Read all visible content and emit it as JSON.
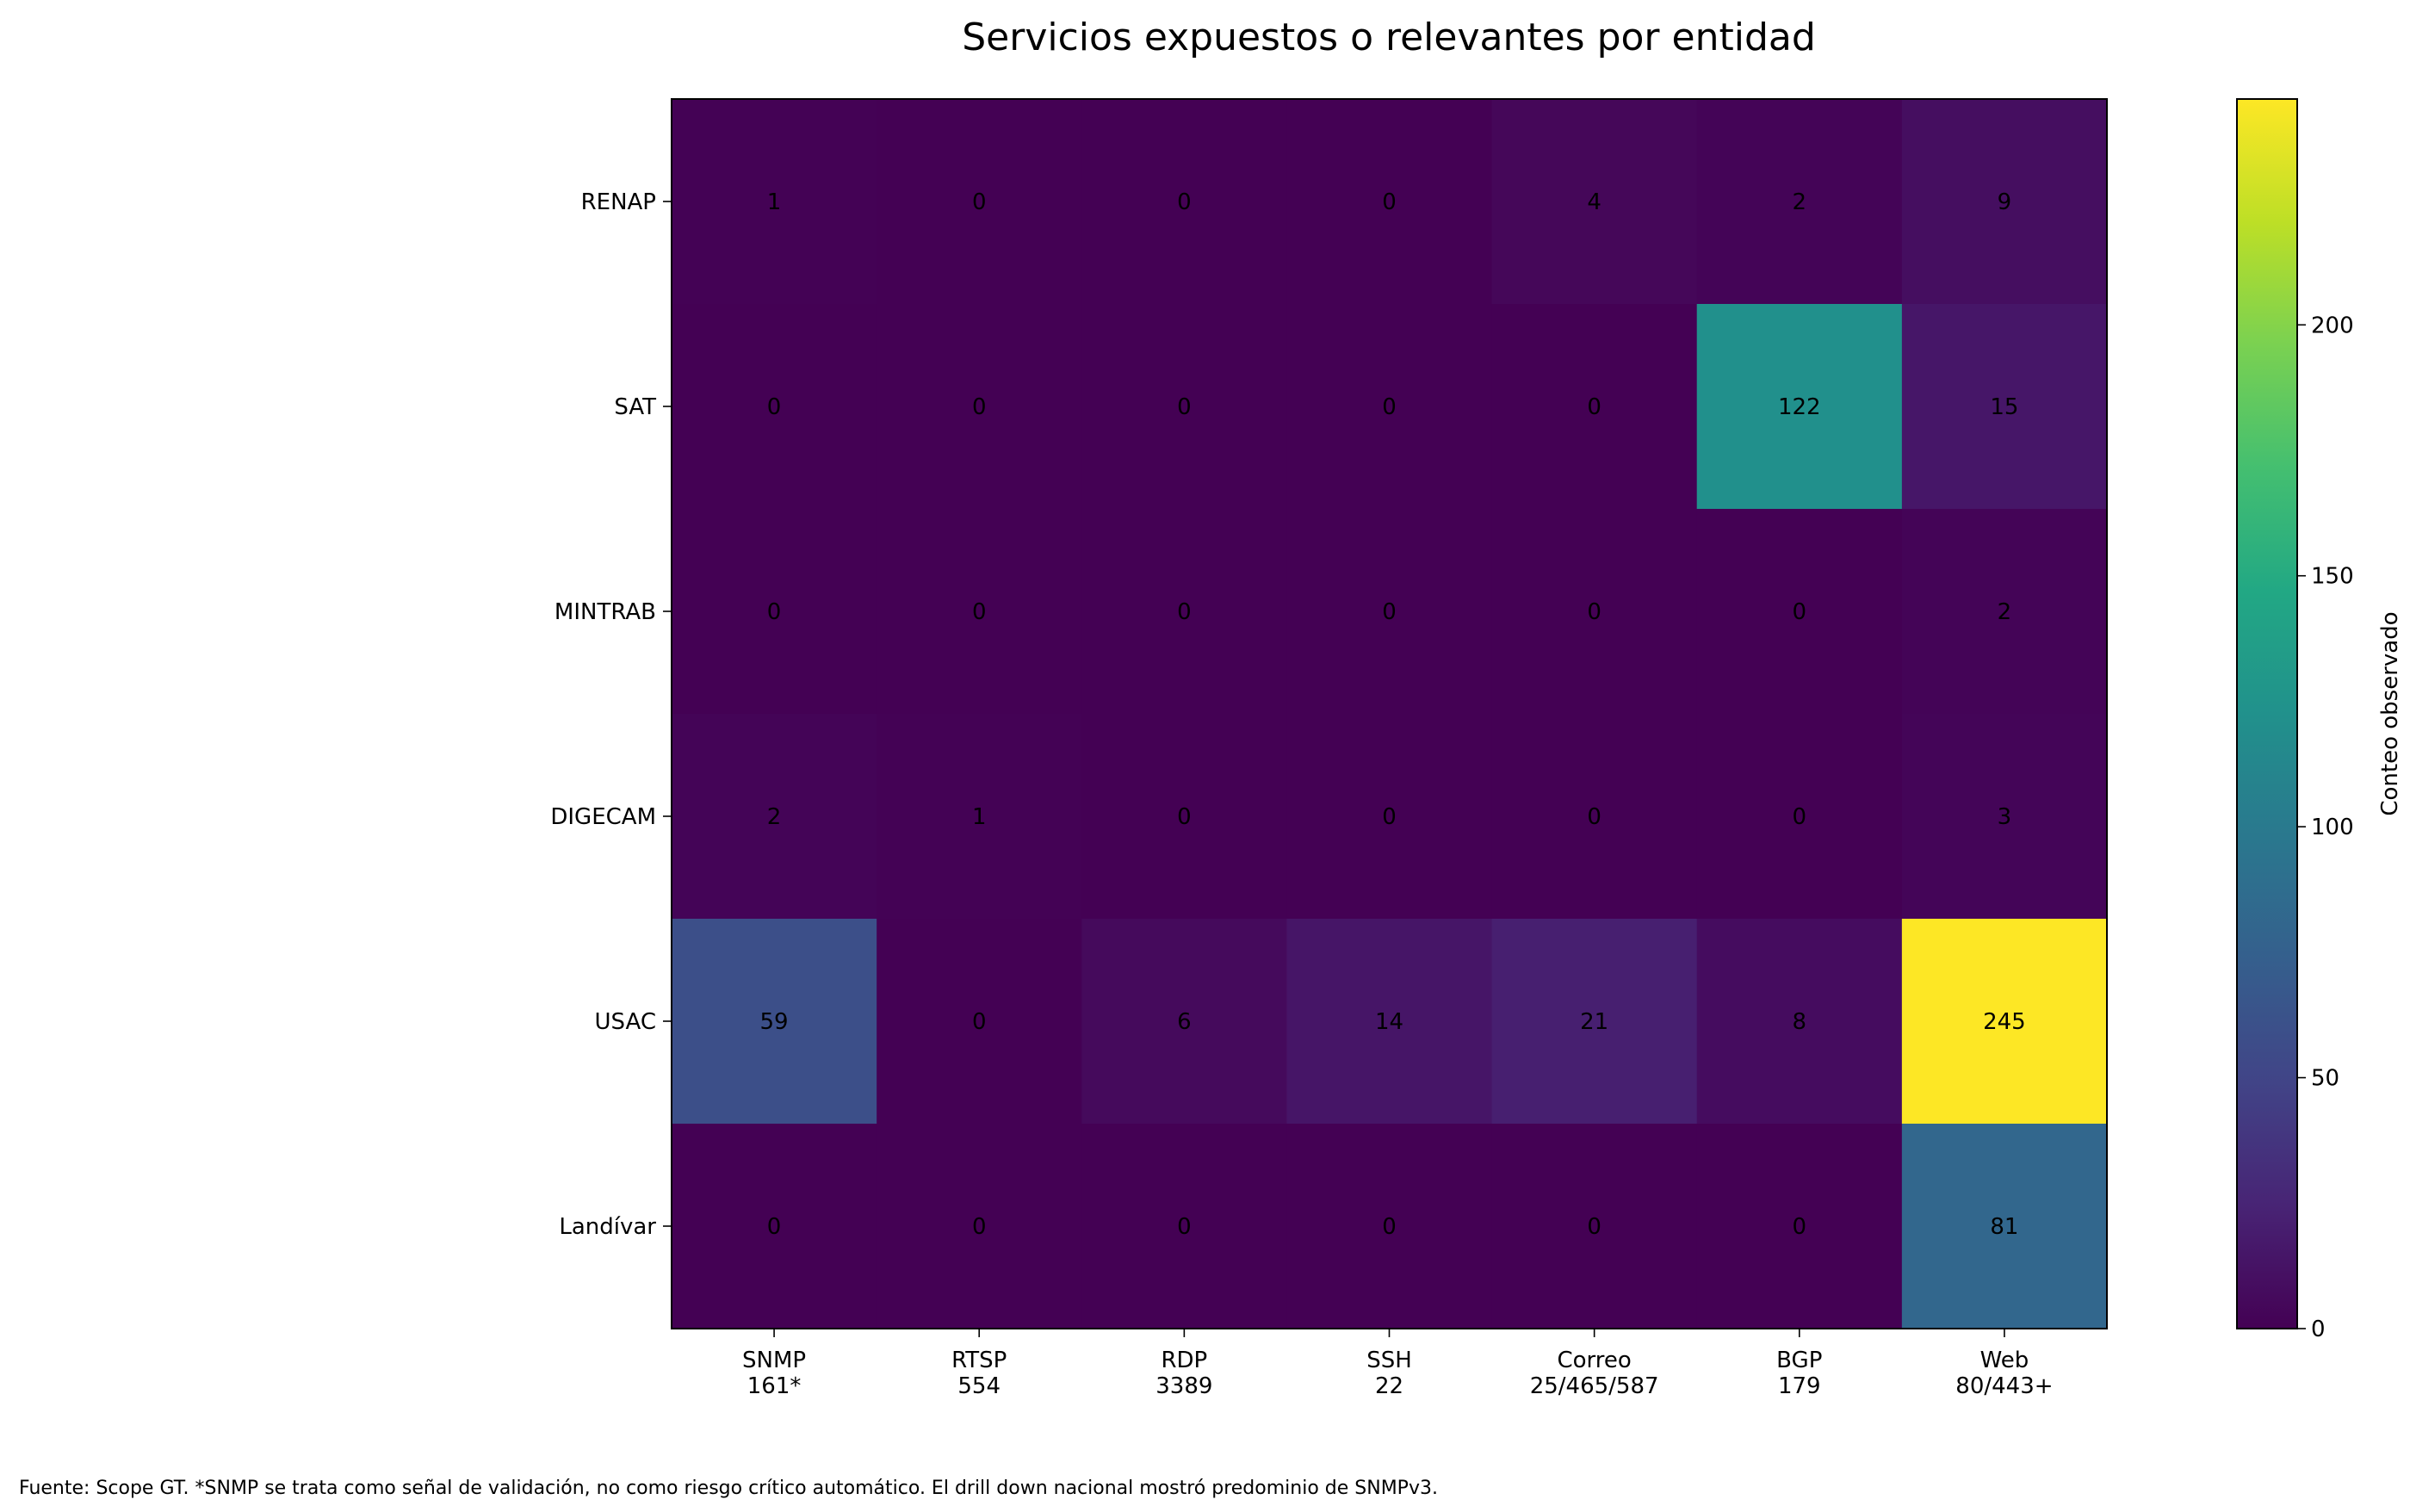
{
  "chart_data": {
    "type": "heatmap",
    "title": "Servicios expuestos o relevantes por entidad",
    "rows": [
      "RENAP",
      "SAT",
      "MINTRAB",
      "DIGECAM",
      "USAC",
      "Landívar"
    ],
    "columns": [
      [
        "SNMP",
        "161*"
      ],
      [
        "RTSP",
        "554"
      ],
      [
        "RDP",
        "3389"
      ],
      [
        "SSH",
        "22"
      ],
      [
        "Correo",
        "25/465/587"
      ],
      [
        "BGP",
        "179"
      ],
      [
        "Web",
        "80/443+"
      ]
    ],
    "values": [
      [
        1,
        0,
        0,
        0,
        4,
        2,
        9
      ],
      [
        0,
        0,
        0,
        0,
        0,
        122,
        15
      ],
      [
        0,
        0,
        0,
        0,
        0,
        0,
        2
      ],
      [
        2,
        1,
        0,
        0,
        0,
        0,
        3
      ],
      [
        59,
        0,
        6,
        14,
        21,
        8,
        245
      ],
      [
        0,
        0,
        0,
        0,
        0,
        0,
        81
      ]
    ],
    "colormap": "viridis",
    "vmin": 0,
    "vmax": 245,
    "colorbar": {
      "label": "Conteo observado",
      "ticks": [
        0,
        50,
        100,
        150,
        200
      ]
    },
    "grid": false
  },
  "footer": "Fuente: Scope GT. *SNMP se trata como señal de validación, no como riesgo crítico automático. El drill down nacional mostró predominio de SNMPv3."
}
